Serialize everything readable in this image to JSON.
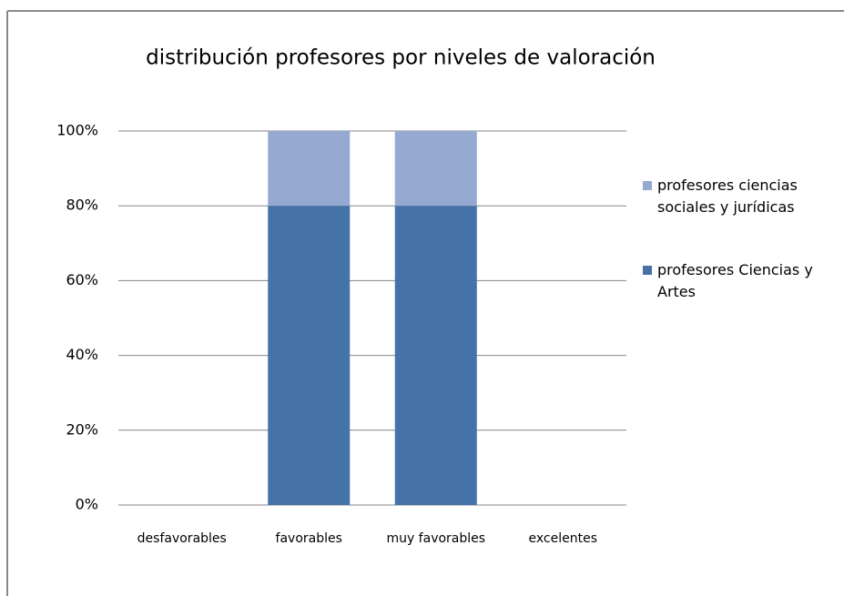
{
  "chart_data": {
    "type": "stacked_bar",
    "title": "distribución profesores por niveles de valoración",
    "categories": [
      "desfavorables",
      "favorables",
      "muy favorables",
      "excelentes"
    ],
    "series": [
      {
        "name": "profesores Ciencias y Artes",
        "color": "#4572a7",
        "values": [
          0,
          80,
          80,
          0
        ]
      },
      {
        "name": "profesores ciencias sociales y jurídicas",
        "color": "#95a9d1",
        "values": [
          0,
          20,
          20,
          0
        ]
      }
    ],
    "ylim": [
      0,
      100
    ],
    "yticks": [
      {
        "value": 0,
        "label": "0%"
      },
      {
        "value": 20,
        "label": "20%"
      },
      {
        "value": 40,
        "label": "40%"
      },
      {
        "value": 60,
        "label": "60%"
      },
      {
        "value": 80,
        "label": "80%"
      },
      {
        "value": 100,
        "label": "100%"
      }
    ],
    "grid": true,
    "legend": "right"
  }
}
